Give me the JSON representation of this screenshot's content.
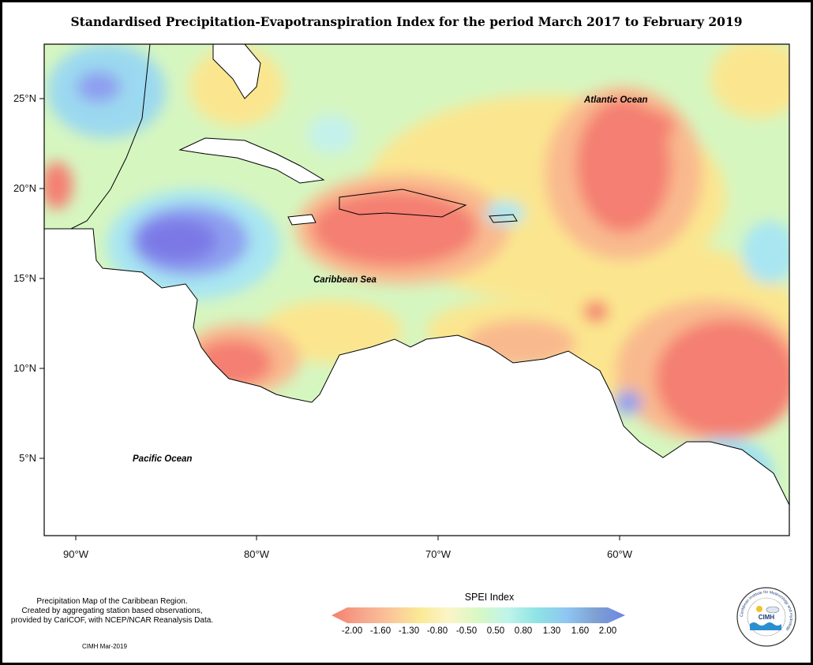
{
  "title": "Standardised Precipitation-Evapotranspiration Index for the period March 2017 to February 2019",
  "map": {
    "lat_labels": [
      "25°N",
      "20°N",
      "15°N",
      "10°N",
      "5°N"
    ],
    "lon_labels": [
      "90°W",
      "80°W",
      "70°W",
      "60°W"
    ],
    "regions": {
      "atlantic": "Atlantic Ocean",
      "caribbean": "Caribbean Sea",
      "pacific": "Pacific Ocean"
    }
  },
  "legend": {
    "title": "SPEI Index",
    "ticks": [
      "-2.00",
      "-1.60",
      "-1.30",
      "-0.80",
      "-0.50",
      "0.50",
      "0.80",
      "1.30",
      "1.60",
      "2.00"
    ],
    "colors": [
      "#f4806e",
      "#f6a58c",
      "#fbc59a",
      "#fbe995",
      "#fbf5c8",
      "#d8f8c4",
      "#bff4ea",
      "#8ee3e4",
      "#8fc6f2",
      "#7ea0d2",
      "#6b86e5"
    ]
  },
  "footer": {
    "note_line1": "Precipitation Map of the Caribbean Region.",
    "note_line2": "Created by aggregating station based observations,",
    "note_line3": "provided by CariCOF, with NCEP/NCAR Reanalysis Data.",
    "credit": "CIMH Mar-2019"
  },
  "logo": {
    "acronym": "CIMH",
    "ring_text": "Caribbean Institute for Meteorology and Hydrology"
  }
}
